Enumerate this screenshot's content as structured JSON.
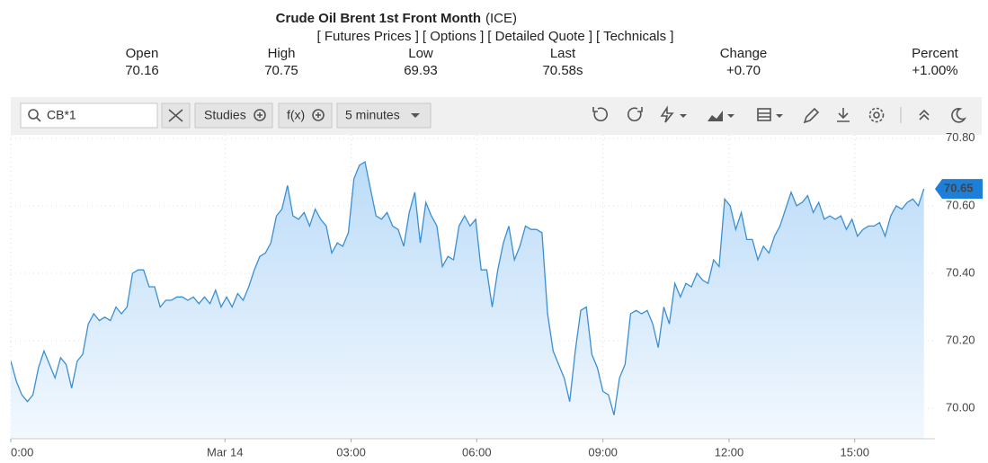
{
  "header": {
    "title": "Crude Oil Brent 1st Front Month",
    "exchange": "(ICE)",
    "links": [
      "[ Futures Prices ]",
      "[ Options ]",
      "[ Detailed Quote ]",
      "[ Technicals ]"
    ]
  },
  "quote": [
    {
      "label": "Open",
      "value": "70.16"
    },
    {
      "label": "High",
      "value": "70.75"
    },
    {
      "label": "Low",
      "value": "69.93"
    },
    {
      "label": "Last",
      "value": "70.58s"
    },
    {
      "label": "Change",
      "value": "+0.70"
    },
    {
      "label": "Percent",
      "value": "+1.00%"
    }
  ],
  "toolbar": {
    "symbol": "CB*1",
    "studies": "Studies",
    "fx": "f(x)",
    "interval": "5 minutes"
  },
  "chart_data": {
    "type": "area",
    "color": "#3a8fd4",
    "last_value": 70.65,
    "values": [
      70.14,
      70.08,
      70.04,
      70.02,
      70.04,
      70.12,
      70.17,
      70.13,
      70.09,
      70.15,
      70.13,
      70.06,
      70.14,
      70.16,
      70.25,
      70.28,
      70.26,
      70.27,
      70.26,
      70.3,
      70.28,
      70.3,
      70.4,
      70.41,
      70.41,
      70.36,
      70.36,
      70.3,
      70.32,
      70.32,
      70.33,
      70.33,
      70.32,
      70.33,
      70.31,
      70.33,
      70.31,
      70.35,
      70.3,
      70.33,
      70.3,
      70.34,
      70.32,
      70.36,
      70.41,
      70.45,
      70.46,
      70.49,
      70.57,
      70.59,
      70.66,
      70.57,
      70.56,
      70.58,
      70.54,
      70.59,
      70.56,
      70.54,
      70.46,
      70.49,
      70.48,
      70.52,
      70.68,
      70.72,
      70.73,
      70.65,
      70.57,
      70.56,
      70.58,
      70.54,
      70.53,
      70.48,
      70.58,
      70.64,
      70.49,
      70.61,
      70.57,
      70.54,
      70.42,
      70.45,
      70.44,
      70.54,
      70.57,
      70.54,
      70.56,
      70.41,
      70.41,
      70.3,
      70.41,
      70.49,
      70.54,
      70.44,
      70.48,
      70.54,
      70.53,
      70.53,
      70.52,
      70.28,
      70.17,
      70.13,
      70.09,
      70.02,
      70.17,
      70.29,
      70.3,
      70.16,
      70.12,
      70.05,
      70.04,
      69.98,
      70.09,
      70.13,
      70.28,
      70.29,
      70.28,
      70.29,
      70.25,
      70.18,
      70.3,
      70.25,
      70.37,
      70.33,
      70.37,
      70.36,
      70.4,
      70.38,
      70.37,
      70.44,
      70.42,
      70.62,
      70.6,
      70.53,
      70.58,
      70.5,
      70.5,
      70.44,
      70.48,
      70.46,
      70.51,
      70.54,
      70.59,
      70.64,
      70.6,
      70.61,
      70.63,
      70.58,
      70.61,
      70.56,
      70.57,
      70.56,
      70.57,
      70.53,
      70.56,
      70.51,
      70.53,
      70.54,
      70.54,
      70.55,
      70.51,
      70.57,
      70.6,
      70.59,
      70.61,
      70.62,
      70.6,
      70.65
    ],
    "xlim": [
      0,
      167
    ],
    "ylim": [
      69.91,
      70.81
    ],
    "xticks": [
      {
        "value": 0,
        "label": "0:00"
      },
      {
        "value": 38.7,
        "label": "Mar 14"
      },
      {
        "value": 61.5,
        "label": "03:00"
      },
      {
        "value": 84.2,
        "label": "06:00"
      },
      {
        "value": 107,
        "label": "09:00"
      },
      {
        "value": 129.8,
        "label": "12:00"
      },
      {
        "value": 152.5,
        "label": "15:00"
      }
    ],
    "yticks": [
      {
        "value": 70.0,
        "label": "70.00"
      },
      {
        "value": 70.2,
        "label": "70.20"
      },
      {
        "value": 70.4,
        "label": "70.40"
      },
      {
        "value": 70.6,
        "label": "70.60"
      },
      {
        "value": 70.8,
        "label": "70.80"
      }
    ],
    "grid": true
  }
}
